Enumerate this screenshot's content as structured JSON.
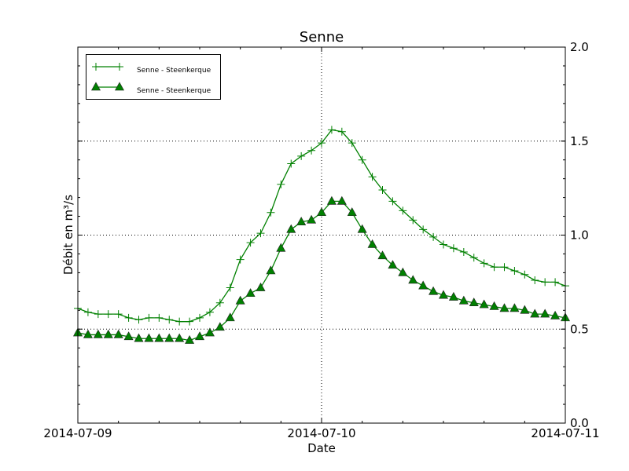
{
  "chart_data": {
    "type": "line",
    "title": "Senne",
    "xlabel": "Date",
    "ylabel": "Débit en m³/s",
    "ylim": [
      0.0,
      2.0
    ],
    "xlim": [
      "2014-07-09T00:00",
      "2014-07-11T00:00"
    ],
    "x_tick_labels": [
      "2014-07-09",
      "2014-07-10",
      "2014-07-11"
    ],
    "y_tick_labels": [
      "0.0",
      "0.5",
      "1.0",
      "1.5",
      "2.0"
    ],
    "y_axis_side": "right",
    "grid": true,
    "legend_position": "top-left",
    "color": "#008000",
    "x": [
      "2014-07-09T00:00",
      "2014-07-09T01:00",
      "2014-07-09T02:00",
      "2014-07-09T03:00",
      "2014-07-09T04:00",
      "2014-07-09T05:00",
      "2014-07-09T06:00",
      "2014-07-09T07:00",
      "2014-07-09T08:00",
      "2014-07-09T09:00",
      "2014-07-09T10:00",
      "2014-07-09T11:00",
      "2014-07-09T12:00",
      "2014-07-09T13:00",
      "2014-07-09T14:00",
      "2014-07-09T15:00",
      "2014-07-09T16:00",
      "2014-07-09T17:00",
      "2014-07-09T18:00",
      "2014-07-09T19:00",
      "2014-07-09T20:00",
      "2014-07-09T21:00",
      "2014-07-09T22:00",
      "2014-07-09T23:00",
      "2014-07-10T00:00",
      "2014-07-10T01:00",
      "2014-07-10T02:00",
      "2014-07-10T03:00",
      "2014-07-10T04:00",
      "2014-07-10T05:00",
      "2014-07-10T06:00",
      "2014-07-10T07:00",
      "2014-07-10T08:00",
      "2014-07-10T09:00",
      "2014-07-10T10:00",
      "2014-07-10T11:00",
      "2014-07-10T12:00",
      "2014-07-10T13:00",
      "2014-07-10T14:00",
      "2014-07-10T15:00",
      "2014-07-10T16:00",
      "2014-07-10T17:00",
      "2014-07-10T18:00",
      "2014-07-10T19:00",
      "2014-07-10T20:00",
      "2014-07-10T21:00",
      "2014-07-10T22:00",
      "2014-07-10T23:00",
      "2014-07-11T00:00"
    ],
    "series": [
      {
        "name": "Senne - Steenkerque",
        "marker": "plus",
        "values": [
          0.61,
          0.59,
          0.58,
          0.58,
          0.58,
          0.56,
          0.55,
          0.56,
          0.56,
          0.55,
          0.54,
          0.54,
          0.56,
          0.59,
          0.64,
          0.72,
          0.87,
          0.96,
          1.01,
          1.12,
          1.27,
          1.38,
          1.42,
          1.45,
          1.49,
          1.56,
          1.55,
          1.49,
          1.4,
          1.31,
          1.24,
          1.18,
          1.13,
          1.08,
          1.03,
          0.99,
          0.95,
          0.93,
          0.91,
          0.88,
          0.85,
          0.83,
          0.83,
          0.81,
          0.79,
          0.76,
          0.75,
          0.75,
          0.73
        ]
      },
      {
        "name": "Senne - Steenkerque",
        "marker": "triangle",
        "values": [
          0.48,
          0.47,
          0.47,
          0.47,
          0.47,
          0.46,
          0.45,
          0.45,
          0.45,
          0.45,
          0.45,
          0.44,
          0.46,
          0.48,
          0.51,
          0.56,
          0.65,
          0.69,
          0.72,
          0.81,
          0.93,
          1.03,
          1.07,
          1.08,
          1.12,
          1.18,
          1.18,
          1.12,
          1.03,
          0.95,
          0.89,
          0.84,
          0.8,
          0.76,
          0.73,
          0.7,
          0.68,
          0.67,
          0.65,
          0.64,
          0.63,
          0.62,
          0.61,
          0.61,
          0.6,
          0.58,
          0.58,
          0.57,
          0.56
        ]
      }
    ]
  }
}
